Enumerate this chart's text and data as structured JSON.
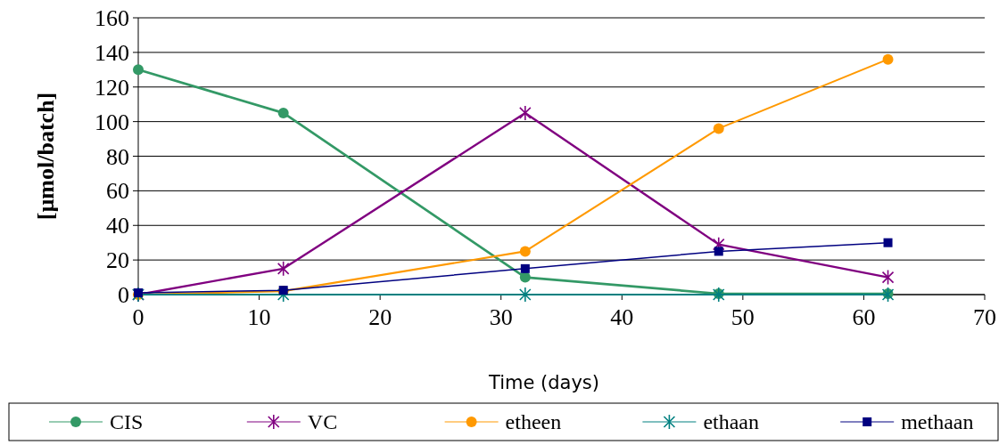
{
  "chart_data": {
    "type": "line",
    "xlabel": "Time (days)",
    "ylabel": "[µmol/batch]",
    "xlim": [
      0,
      70
    ],
    "xticks": [
      0,
      10,
      20,
      30,
      40,
      50,
      60,
      70
    ],
    "ylim": [
      0,
      160
    ],
    "yticks": [
      0,
      20,
      40,
      60,
      80,
      100,
      120,
      140,
      160
    ],
    "grid": "y",
    "legend": "bottom",
    "x": [
      0,
      12,
      32,
      48,
      62
    ],
    "series": [
      {
        "name": "CIS",
        "color": "#339966",
        "marker": "circle",
        "values": [
          130,
          105,
          10,
          0.5,
          0.5
        ]
      },
      {
        "name": "VC",
        "color": "#800080",
        "marker": "cross",
        "values": [
          0,
          15,
          105,
          29,
          10
        ]
      },
      {
        "name": "etheen",
        "color": "#ff9900",
        "marker": "circle",
        "values": [
          0,
          2,
          25,
          96,
          136
        ]
      },
      {
        "name": "ethaan",
        "color": "#008080",
        "marker": "cross",
        "values": [
          0,
          0,
          0,
          0,
          0
        ]
      },
      {
        "name": "methaan",
        "color": "#000080",
        "marker": "square",
        "values": [
          1,
          2.5,
          15,
          25,
          30
        ]
      }
    ]
  }
}
